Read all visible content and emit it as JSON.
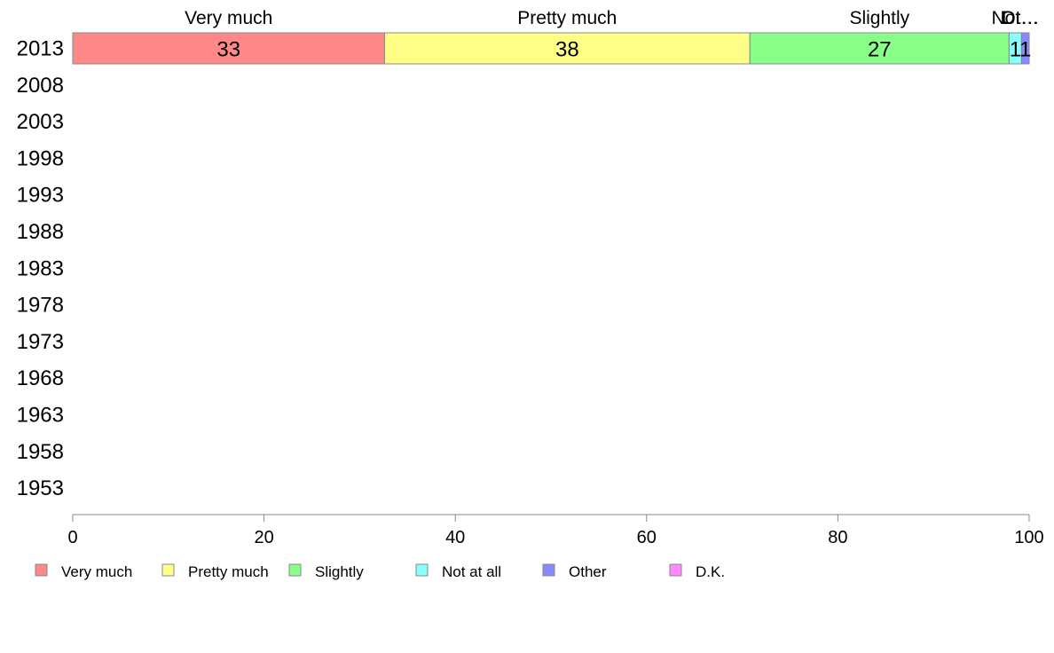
{
  "chart_data": {
    "type": "bar",
    "orientation": "horizontal",
    "stacked": true,
    "categories": [
      "2013",
      "2008",
      "2003",
      "1998",
      "1993",
      "1988",
      "1983",
      "1978",
      "1973",
      "1968",
      "1963",
      "1958",
      "1953"
    ],
    "series": [
      {
        "name": "Very much",
        "color": "#ff8888",
        "values": [
          32.6,
          null,
          null,
          null,
          null,
          null,
          null,
          null,
          null,
          null,
          null,
          null,
          null
        ]
      },
      {
        "name": "Pretty much",
        "color": "#ffff88",
        "values": [
          38.2,
          null,
          null,
          null,
          null,
          null,
          null,
          null,
          null,
          null,
          null,
          null,
          null
        ]
      },
      {
        "name": "Slightly",
        "color": "#88ff88",
        "values": [
          27.1,
          null,
          null,
          null,
          null,
          null,
          null,
          null,
          null,
          null,
          null,
          null,
          null
        ]
      },
      {
        "name": "Not at all",
        "color": "#88ffff",
        "values": [
          1.3,
          null,
          null,
          null,
          null,
          null,
          null,
          null,
          null,
          null,
          null,
          null,
          null
        ]
      },
      {
        "name": "Other",
        "color": "#8888ff",
        "values": [
          0.8,
          null,
          null,
          null,
          null,
          null,
          null,
          null,
          null,
          null,
          null,
          null,
          null
        ]
      },
      {
        "name": "D.K.",
        "color": "#ff88ff",
        "values": [
          0,
          null,
          null,
          null,
          null,
          null,
          null,
          null,
          null,
          null,
          null,
          null,
          null
        ]
      }
    ],
    "data_labels": [
      [
        "33",
        "38",
        "27",
        "1",
        "1",
        ""
      ]
    ],
    "top_labels": [
      "Very much",
      "Pretty much",
      "Slightly",
      "Not…",
      "Ot…",
      "D.…"
    ],
    "xlim": [
      0,
      100
    ],
    "xticks": [
      "0",
      "20",
      "40",
      "60",
      "80",
      "100"
    ],
    "legend_placement": "bottom",
    "grid": false,
    "title": "",
    "xlabel": "",
    "ylabel": ""
  }
}
